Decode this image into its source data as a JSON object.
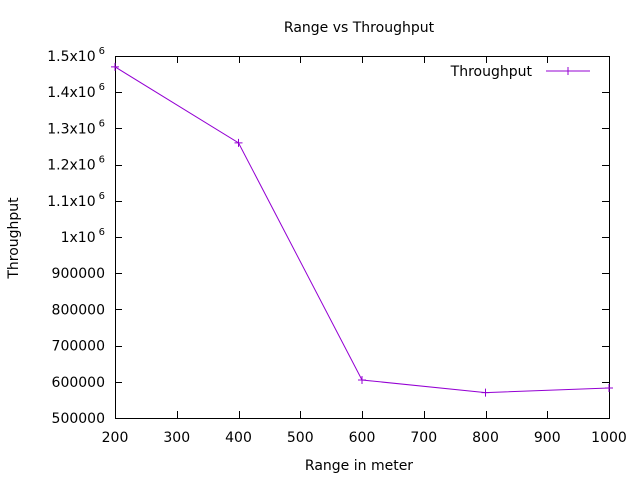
{
  "chart_data": {
    "type": "line",
    "title": "Range vs Throughput",
    "xlabel": "Range in meter",
    "ylabel": "Throughput",
    "xlim": [
      200,
      1000
    ],
    "ylim": [
      500000,
      1500000
    ],
    "x_ticks": [
      200,
      300,
      400,
      500,
      600,
      700,
      800,
      900,
      1000
    ],
    "y_ticks": [
      {
        "value": 500000,
        "mantissa": "500000",
        "exp": ""
      },
      {
        "value": 600000,
        "mantissa": "600000",
        "exp": ""
      },
      {
        "value": 700000,
        "mantissa": "700000",
        "exp": ""
      },
      {
        "value": 800000,
        "mantissa": "800000",
        "exp": ""
      },
      {
        "value": 900000,
        "mantissa": "900000",
        "exp": ""
      },
      {
        "value": 1000000,
        "mantissa": "1x10",
        "exp": "6"
      },
      {
        "value": 1100000,
        "mantissa": "1.1x10",
        "exp": "6"
      },
      {
        "value": 1200000,
        "mantissa": "1.2x10",
        "exp": "6"
      },
      {
        "value": 1300000,
        "mantissa": "1.3x10",
        "exp": "6"
      },
      {
        "value": 1400000,
        "mantissa": "1.4x10",
        "exp": "6"
      },
      {
        "value": 1500000,
        "mantissa": "1.5x10",
        "exp": "6"
      }
    ],
    "grid": false,
    "legend_position": "top-right",
    "series": [
      {
        "name": "Throughput",
        "color": "#9400d3",
        "x": [
          200,
          400,
          600,
          800,
          1000
        ],
        "y": [
          1470000,
          1260000,
          605000,
          570000,
          583000
        ]
      }
    ]
  }
}
